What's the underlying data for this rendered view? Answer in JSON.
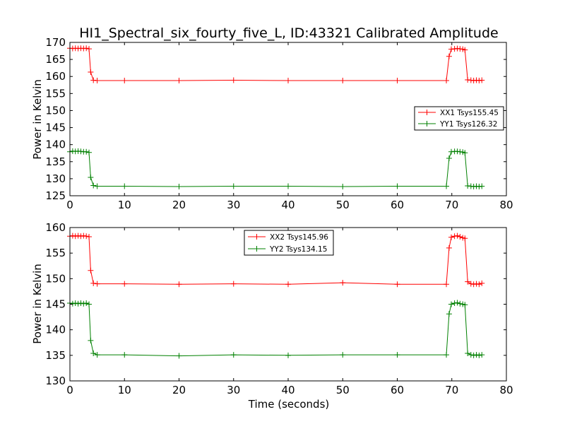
{
  "chart_data": [
    {
      "type": "line",
      "title": "HI1_Spectral_six_fourty_five_L, ID:43321 Calibrated Amplitude",
      "xlabel": "",
      "ylabel": "Power in Kelvin",
      "xlim": [
        0,
        80
      ],
      "ylim": [
        125,
        170
      ],
      "xticks": [
        "0",
        "10",
        "20",
        "30",
        "40",
        "50",
        "60",
        "70",
        "80"
      ],
      "yticks": [
        "125",
        "130",
        "135",
        "140",
        "145",
        "150",
        "155",
        "160",
        "165",
        "170"
      ],
      "legend_position": "center-right",
      "series": [
        {
          "name": "XX1 Tsys155.45",
          "color": "#ff0000",
          "marker": "+",
          "points": [
            [
              0.0,
              168.3
            ],
            [
              0.5,
              168.2
            ],
            [
              1.0,
              168.3
            ],
            [
              1.5,
              168.2
            ],
            [
              2.0,
              168.3
            ],
            [
              2.5,
              168.2
            ],
            [
              3.0,
              168.3
            ],
            [
              3.5,
              168.1
            ],
            [
              3.8,
              161.3
            ],
            [
              4.3,
              158.9
            ],
            [
              5.0,
              158.8
            ],
            [
              10.0,
              158.8
            ],
            [
              20.0,
              158.8
            ],
            [
              30.0,
              158.9
            ],
            [
              40.0,
              158.8
            ],
            [
              50.0,
              158.8
            ],
            [
              60.0,
              158.8
            ],
            [
              69.0,
              158.8
            ],
            [
              69.5,
              165.9
            ],
            [
              69.9,
              168.0
            ],
            [
              70.5,
              168.1
            ],
            [
              71.0,
              168.2
            ],
            [
              71.5,
              168.1
            ],
            [
              72.0,
              168.0
            ],
            [
              72.4,
              167.8
            ],
            [
              72.9,
              159.0
            ],
            [
              73.5,
              158.9
            ],
            [
              74.0,
              158.8
            ],
            [
              74.5,
              158.9
            ],
            [
              75.0,
              158.8
            ],
            [
              75.5,
              158.9
            ]
          ]
        },
        {
          "name": "YY1 Tsys126.32",
          "color": "#008000",
          "marker": "+",
          "points": [
            [
              0.0,
              137.9
            ],
            [
              0.5,
              138.1
            ],
            [
              1.0,
              138.0
            ],
            [
              1.5,
              138.1
            ],
            [
              2.0,
              138.0
            ],
            [
              2.5,
              137.9
            ],
            [
              3.0,
              137.9
            ],
            [
              3.5,
              137.7
            ],
            [
              3.8,
              130.4
            ],
            [
              4.3,
              128.0
            ],
            [
              5.0,
              127.8
            ],
            [
              10.0,
              127.8
            ],
            [
              20.0,
              127.7
            ],
            [
              30.0,
              127.8
            ],
            [
              40.0,
              127.8
            ],
            [
              50.0,
              127.7
            ],
            [
              60.0,
              127.8
            ],
            [
              69.0,
              127.8
            ],
            [
              69.5,
              136.0
            ],
            [
              69.9,
              137.9
            ],
            [
              70.5,
              138.0
            ],
            [
              71.0,
              138.0
            ],
            [
              71.5,
              137.9
            ],
            [
              72.0,
              137.8
            ],
            [
              72.4,
              137.6
            ],
            [
              72.9,
              127.9
            ],
            [
              73.5,
              127.8
            ],
            [
              74.0,
              127.7
            ],
            [
              74.5,
              127.8
            ],
            [
              75.0,
              127.7
            ],
            [
              75.5,
              127.8
            ]
          ]
        }
      ]
    },
    {
      "type": "line",
      "title": "",
      "xlabel": "Time (seconds)",
      "ylabel": "Power in Kelvin",
      "xlim": [
        0,
        80
      ],
      "ylim": [
        130,
        160
      ],
      "xticks": [
        "0",
        "10",
        "20",
        "30",
        "40",
        "50",
        "60",
        "70",
        "80"
      ],
      "yticks": [
        "130",
        "135",
        "140",
        "145",
        "150",
        "155",
        "160"
      ],
      "legend_position": "top-center",
      "series": [
        {
          "name": "XX2 Tsys145.96",
          "color": "#ff0000",
          "marker": "+",
          "points": [
            [
              0.0,
              158.3
            ],
            [
              0.5,
              158.4
            ],
            [
              1.0,
              158.3
            ],
            [
              1.5,
              158.4
            ],
            [
              2.0,
              158.3
            ],
            [
              2.5,
              158.4
            ],
            [
              3.0,
              158.3
            ],
            [
              3.5,
              158.2
            ],
            [
              3.8,
              151.6
            ],
            [
              4.3,
              149.1
            ],
            [
              5.0,
              149.0
            ],
            [
              10.0,
              149.0
            ],
            [
              20.0,
              148.9
            ],
            [
              30.0,
              149.0
            ],
            [
              40.0,
              148.9
            ],
            [
              50.0,
              149.2
            ],
            [
              60.0,
              148.9
            ],
            [
              69.0,
              148.9
            ],
            [
              69.5,
              156.0
            ],
            [
              69.9,
              158.1
            ],
            [
              70.5,
              158.3
            ],
            [
              71.0,
              158.4
            ],
            [
              71.5,
              158.2
            ],
            [
              72.0,
              158.0
            ],
            [
              72.4,
              157.9
            ],
            [
              72.9,
              149.4
            ],
            [
              73.5,
              149.0
            ],
            [
              74.0,
              148.9
            ],
            [
              74.5,
              149.0
            ],
            [
              75.0,
              148.9
            ],
            [
              75.5,
              149.1
            ]
          ]
        },
        {
          "name": "YY2 Tsys134.15",
          "color": "#008000",
          "marker": "+",
          "points": [
            [
              0.0,
              145.2
            ],
            [
              0.5,
              145.1
            ],
            [
              1.0,
              145.2
            ],
            [
              1.5,
              145.1
            ],
            [
              2.0,
              145.2
            ],
            [
              2.5,
              145.1
            ],
            [
              3.0,
              145.2
            ],
            [
              3.5,
              145.0
            ],
            [
              3.8,
              137.9
            ],
            [
              4.3,
              135.4
            ],
            [
              5.0,
              135.1
            ],
            [
              10.0,
              135.1
            ],
            [
              20.0,
              134.9
            ],
            [
              30.0,
              135.1
            ],
            [
              40.0,
              135.0
            ],
            [
              50.0,
              135.1
            ],
            [
              60.0,
              135.1
            ],
            [
              69.0,
              135.1
            ],
            [
              69.5,
              143.1
            ],
            [
              69.9,
              145.0
            ],
            [
              70.5,
              145.2
            ],
            [
              71.0,
              145.3
            ],
            [
              71.5,
              145.1
            ],
            [
              72.0,
              145.0
            ],
            [
              72.4,
              144.9
            ],
            [
              72.9,
              135.4
            ],
            [
              73.5,
              135.1
            ],
            [
              74.0,
              135.0
            ],
            [
              74.5,
              135.1
            ],
            [
              75.0,
              135.0
            ],
            [
              75.5,
              135.1
            ]
          ]
        }
      ]
    }
  ]
}
